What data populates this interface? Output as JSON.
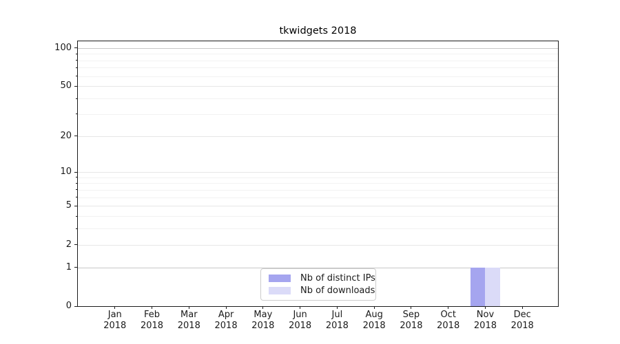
{
  "chart_data": {
    "type": "bar",
    "title": "tkwidgets 2018",
    "xlabel": "",
    "ylabel": "",
    "categories": [
      {
        "month": "Jan",
        "year": "2018"
      },
      {
        "month": "Feb",
        "year": "2018"
      },
      {
        "month": "Mar",
        "year": "2018"
      },
      {
        "month": "Apr",
        "year": "2018"
      },
      {
        "month": "May",
        "year": "2018"
      },
      {
        "month": "Jun",
        "year": "2018"
      },
      {
        "month": "Jul",
        "year": "2018"
      },
      {
        "month": "Aug",
        "year": "2018"
      },
      {
        "month": "Sep",
        "year": "2018"
      },
      {
        "month": "Oct",
        "year": "2018"
      },
      {
        "month": "Nov",
        "year": "2018"
      },
      {
        "month": "Dec",
        "year": "2018"
      }
    ],
    "series": [
      {
        "name": "Nb of distinct IPs",
        "color": "#a5a5ef",
        "values": [
          0,
          0,
          0,
          0,
          0,
          0,
          0,
          0,
          0,
          0,
          1,
          0
        ]
      },
      {
        "name": "Nb of downloads",
        "color": "#dbdbf8",
        "values": [
          0,
          0,
          0,
          0,
          0,
          0,
          0,
          0,
          0,
          0,
          1,
          0
        ]
      }
    ],
    "yscale": "log10(value+1)",
    "ylim": [
      0,
      113
    ],
    "yticks_major": [
      0,
      1,
      2,
      5,
      10,
      20,
      50,
      100
    ],
    "yticks_minor": [
      3,
      4,
      6,
      7,
      8,
      9,
      30,
      40,
      60,
      70,
      80,
      90
    ],
    "grid": "horizontal",
    "strong_gridlines_at": [
      1,
      100
    ],
    "legend_position": "lower center inside axes",
    "colors": {
      "axis": "#1a1a1a",
      "grid_strong": "#c8c8c8",
      "grid_major": "#e6e6e6",
      "grid_minor": "#f2f2f2",
      "background": "#ffffff"
    }
  }
}
